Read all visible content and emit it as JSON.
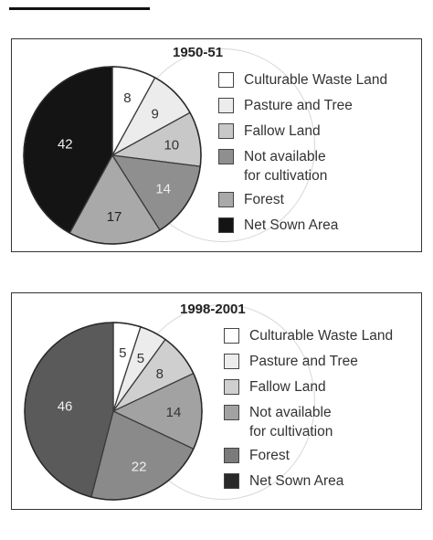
{
  "chart_data": [
    {
      "type": "pie",
      "title": "1950-51",
      "categories": [
        "Culturable Waste Land",
        "Pasture and Tree",
        "Fallow Land",
        "Not available for cultivation",
        "Forest",
        "Net Sown Area"
      ],
      "values": [
        8,
        9,
        10,
        14,
        17,
        42
      ],
      "legend_labels": [
        "Culturable Waste Land",
        "Pasture and Tree",
        "Fallow Land",
        [
          "Not available",
          "for cultivation"
        ],
        "Forest",
        "Net Sown Area"
      ],
      "colors": [
        "#ffffff",
        "#ececec",
        "#c8c8c8",
        "#8f8f8f",
        "#a9a9a9",
        "#141414"
      ],
      "label_colors": [
        "#333333",
        "#333333",
        "#333333",
        "#eeeeee",
        "#222222",
        "#f2f2f2"
      ],
      "legend_position": "right"
    },
    {
      "type": "pie",
      "title": "1998-2001",
      "categories": [
        "Culturable Waste Land",
        "Pasture and Tree",
        "Fallow Land",
        "Not available for cultivation",
        "Forest",
        "Net Sown Area"
      ],
      "values": [
        5,
        5,
        8,
        14,
        22,
        46
      ],
      "legend_labels": [
        "Culturable Waste Land",
        "Pasture and Tree",
        "Fallow Land",
        [
          "Not available",
          "for cultivation"
        ],
        "Forest",
        "Net Sown Area"
      ],
      "colors": [
        "#ffffff",
        "#ececec",
        "#cfcfcf",
        "#a2a2a2",
        "#8a8a8a",
        "#5a5a5a"
      ],
      "legend_colors": [
        "#ffffff",
        "#ececec",
        "#cfcfcf",
        "#a2a2a2",
        "#7b7b7b",
        "#2a2a2a"
      ],
      "label_colors": [
        "#333333",
        "#333333",
        "#333333",
        "#333333",
        "#f0f0f0",
        "#f0f0f0"
      ],
      "legend_position": "right"
    }
  ]
}
